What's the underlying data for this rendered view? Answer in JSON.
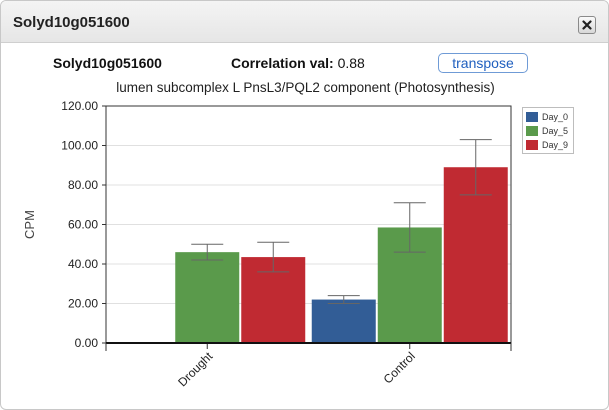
{
  "dialog": {
    "title": "Solyd10g051600"
  },
  "info": {
    "gene_id": "Solyd10g051600",
    "correlation_label": "Correlation val:",
    "correlation_value": "0.88",
    "transpose_label": "transpose"
  },
  "description": "lumen subcomplex L PnsL3/PQL2 component (Photosynthesis)",
  "legend": {
    "items": [
      {
        "label": "Day_0",
        "color": "#325d96"
      },
      {
        "label": "Day_5",
        "color": "#5a9a4b"
      },
      {
        "label": "Day_9",
        "color": "#c02a32"
      }
    ]
  },
  "chart_data": {
    "type": "bar",
    "ylabel": "CPM",
    "xlabel": "",
    "ylim": [
      0,
      120
    ],
    "yticks": [
      "0.00",
      "20.00",
      "40.00",
      "60.00",
      "80.00",
      "100.00",
      "120.00"
    ],
    "categories": [
      "Drought",
      "Control"
    ],
    "series": [
      {
        "name": "Day_0",
        "color": "#325d96",
        "values": [
          0,
          22
        ],
        "errors": [
          0,
          2
        ]
      },
      {
        "name": "Day_5",
        "color": "#5a9a4b",
        "values": [
          46,
          58.5
        ],
        "errors": [
          4,
          12.5
        ]
      },
      {
        "name": "Day_9",
        "color": "#c02a32",
        "values": [
          43.5,
          89
        ],
        "errors": [
          7.5,
          14
        ]
      }
    ],
    "grid": "horizontal",
    "legend_position": "right"
  }
}
